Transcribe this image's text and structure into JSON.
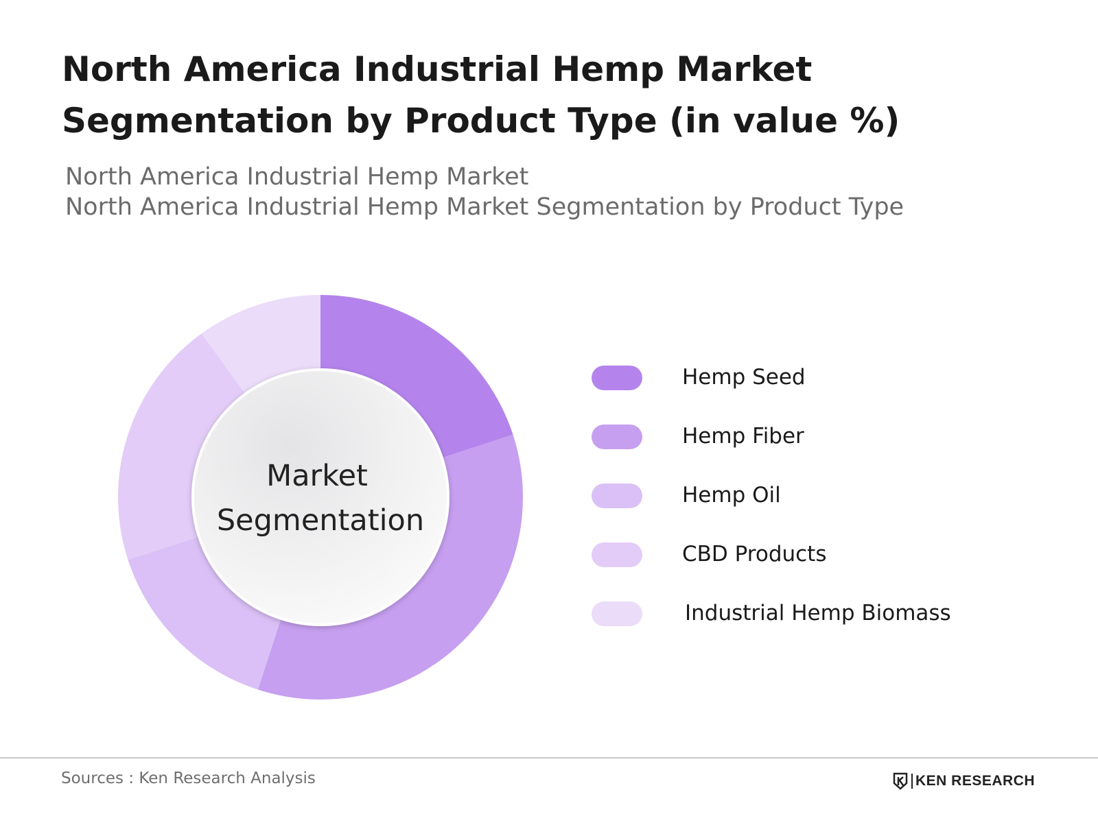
{
  "header": {
    "title": "North America Industrial Hemp Market Segmentation by Product Type (in value %)",
    "subtitle_line1": "North America Industrial Hemp Market",
    "subtitle_line2": "North America Industrial Hemp Market Segmentation by Product Type"
  },
  "chart_data": {
    "type": "pie",
    "variant": "donut",
    "center_label_line1": "Market",
    "center_label_line2": "Segmentation",
    "legend_position": "right",
    "categories": [
      "Hemp Seed",
      "Hemp Fiber",
      "Hemp Oil",
      "CBD Products",
      "Industrial Hemp Biomass"
    ],
    "values": [
      20,
      35,
      15,
      20,
      10
    ],
    "colors": [
      "#b484ec",
      "#c69ff0",
      "#dac0f6",
      "#e3ccf7",
      "#ebdcf9"
    ],
    "title": "",
    "xlabel": "",
    "ylabel": ""
  },
  "footer": {
    "source": "Sources : Ken Research Analysis",
    "brand": "KEN RESEARCH"
  }
}
